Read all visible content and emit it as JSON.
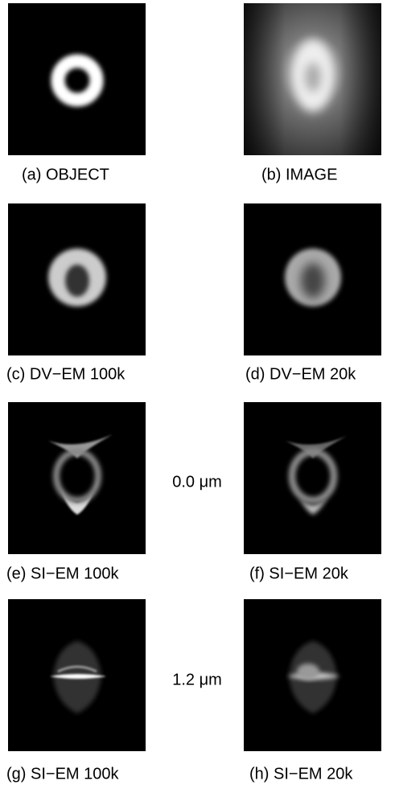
{
  "panels": [
    {
      "caption": "(a) OBJECT"
    },
    {
      "caption": "(b) IMAGE"
    },
    {
      "caption": "(c) DV−EM 100k"
    },
    {
      "caption": "(d) DV−EM 20k"
    },
    {
      "caption": "(e) SI−EM 100k"
    },
    {
      "caption": "(f) SI−EM 20k"
    },
    {
      "caption": "(g) SI−EM 100k"
    },
    {
      "caption": "(h) SI−EM 20k"
    }
  ],
  "depth_labels": [
    "0.0 μm",
    "1.2 μm"
  ]
}
